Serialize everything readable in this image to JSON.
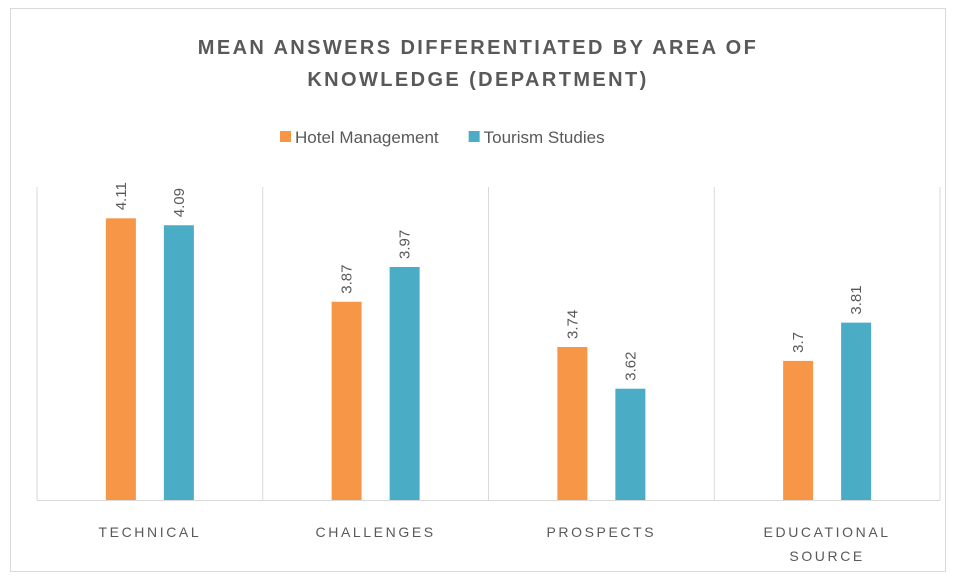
{
  "chart_data": {
    "type": "bar",
    "title": "MEAN ANSWERS DIFFERENTIATED BY AREA OF KNOWLEDGE (DEPARTMENT)",
    "categories": [
      "TECHNICAL",
      "CHALLENGES",
      "PROSPECTS",
      "EDUCATIONAL SOURCE"
    ],
    "series": [
      {
        "name": "Hotel Management",
        "color": "#f79646",
        "values": [
          4.11,
          3.87,
          3.74,
          3.7
        ]
      },
      {
        "name": "Tourism Studies",
        "color": "#4bacc6",
        "values": [
          4.09,
          3.97,
          3.62,
          3.81
        ]
      }
    ],
    "ylim": [
      3.3,
      4.2
    ],
    "legend": "top"
  }
}
